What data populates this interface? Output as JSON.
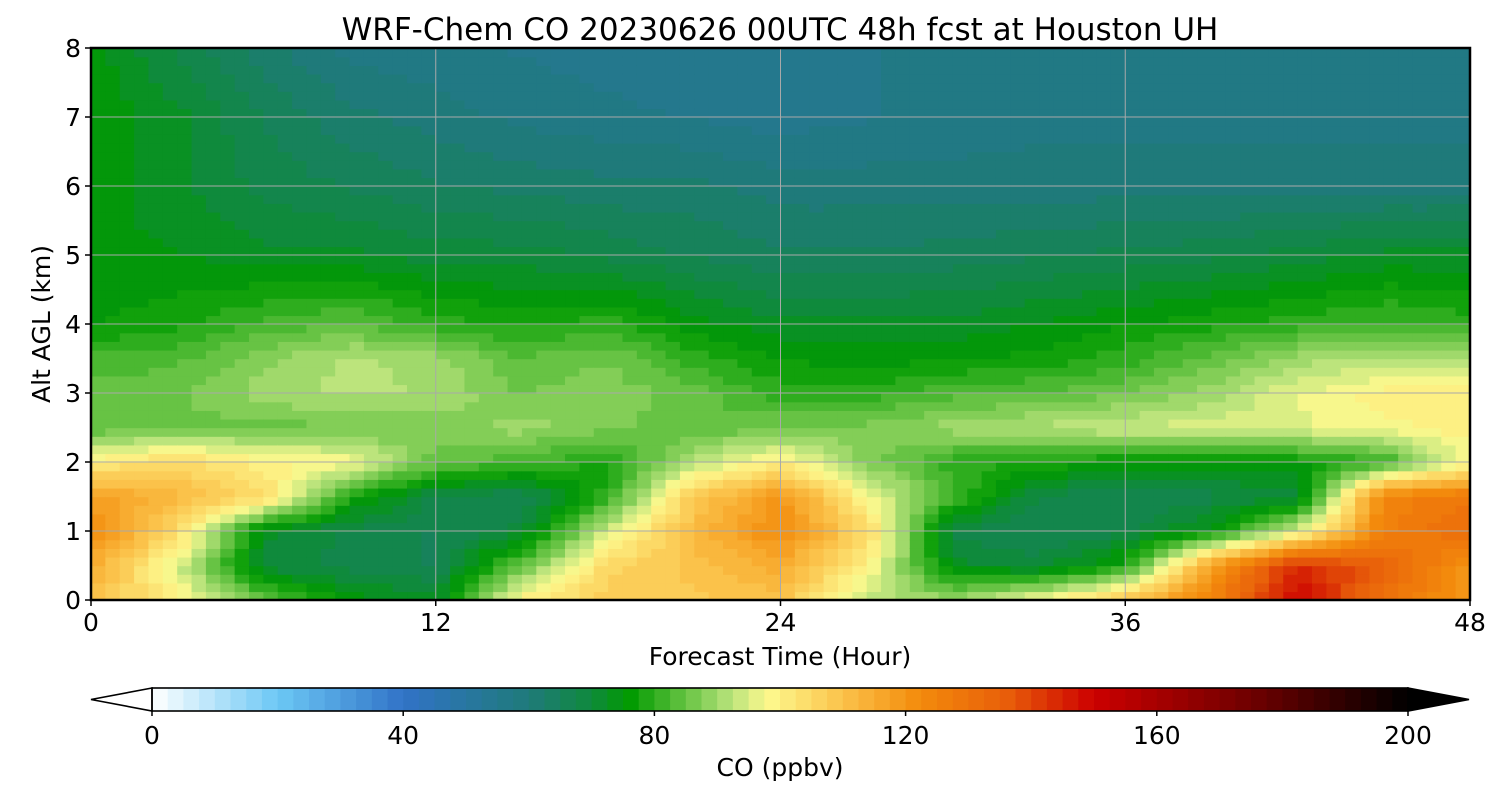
{
  "chart_data": {
    "type": "heatmap",
    "subtype": "filled-contour time-height cross-section",
    "title": "WRF-Chem CO  20230626 00UTC 48h fcst at Houston UH",
    "xlabel": "Forecast Time (Hour)",
    "ylabel": "Alt AGL (km)",
    "xlim": [
      0,
      48
    ],
    "ylim": [
      0,
      8
    ],
    "xticks": [
      0,
      12,
      24,
      36,
      48
    ],
    "yticks": [
      0,
      1,
      2,
      3,
      4,
      5,
      6,
      7,
      8
    ],
    "grid": true,
    "x_hours": [
      0,
      3,
      6,
      9,
      12,
      15,
      18,
      21,
      24,
      27,
      30,
      33,
      36,
      39,
      42,
      45,
      48
    ],
    "z_km": [
      0,
      0.5,
      1,
      1.5,
      2,
      2.5,
      3,
      3.5,
      4,
      5,
      6,
      7,
      8
    ],
    "co_ppbv": [
      [
        110,
        100,
        85,
        75,
        72,
        100,
        108,
        108,
        110,
        92,
        90,
        98,
        110,
        125,
        150,
        130,
        118
      ],
      [
        115,
        95,
        70,
        68,
        66,
        85,
        105,
        110,
        115,
        100,
        72,
        70,
        78,
        118,
        145,
        135,
        120
      ],
      [
        122,
        105,
        72,
        68,
        66,
        70,
        95,
        112,
        122,
        105,
        68,
        66,
        68,
        75,
        95,
        125,
        132
      ],
      [
        118,
        112,
        105,
        78,
        68,
        66,
        80,
        108,
        120,
        98,
        82,
        68,
        66,
        68,
        70,
        125,
        128
      ],
      [
        100,
        105,
        100,
        98,
        85,
        82,
        78,
        92,
        100,
        88,
        80,
        78,
        76,
        75,
        76,
        80,
        98
      ],
      [
        84,
        85,
        85,
        86,
        87,
        90,
        87,
        84,
        86,
        87,
        90,
        92,
        94,
        95,
        96,
        98,
        100
      ],
      [
        85,
        86,
        90,
        92,
        91,
        86,
        88,
        85,
        80,
        80,
        83,
        84,
        86,
        90,
        96,
        100,
        100
      ],
      [
        82,
        83,
        88,
        92,
        90,
        84,
        86,
        80,
        76,
        75,
        76,
        77,
        80,
        85,
        90,
        92,
        90
      ],
      [
        76,
        78,
        82,
        84,
        80,
        78,
        80,
        75,
        72,
        72,
        72,
        74,
        76,
        78,
        80,
        82,
        80
      ],
      [
        74,
        74,
        72,
        72,
        70,
        70,
        68,
        66,
        64,
        64,
        65,
        66,
        67,
        68,
        70,
        72,
        72
      ],
      [
        75,
        72,
        68,
        66,
        64,
        63,
        62,
        62,
        60,
        60,
        60,
        60,
        60,
        60,
        60,
        60,
        60
      ],
      [
        76,
        72,
        66,
        62,
        60,
        58,
        57,
        56,
        55,
        56,
        57,
        58,
        58,
        58,
        58,
        58,
        58
      ],
      [
        75,
        68,
        62,
        58,
        57,
        56,
        55,
        54,
        54,
        56,
        57,
        58,
        58,
        58,
        58,
        58,
        58
      ]
    ],
    "colorbar": {
      "label": "CO  (ppbv)",
      "min": 0,
      "max": 200,
      "ticks": [
        0,
        40,
        80,
        120,
        160,
        200
      ],
      "extend": "both",
      "colors": [
        {
          "v": 0,
          "c": "#ffffff"
        },
        {
          "v": 20,
          "c": "#6cc8f5"
        },
        {
          "v": 40,
          "c": "#3173c7"
        },
        {
          "v": 60,
          "c": "#1f7a7a"
        },
        {
          "v": 70,
          "c": "#0f8a3c"
        },
        {
          "v": 76,
          "c": "#009a00"
        },
        {
          "v": 84,
          "c": "#5cbf3c"
        },
        {
          "v": 92,
          "c": "#b6e27a"
        },
        {
          "v": 98,
          "c": "#fdf98e"
        },
        {
          "v": 110,
          "c": "#fbc24a"
        },
        {
          "v": 122,
          "c": "#f38c0c"
        },
        {
          "v": 136,
          "c": "#e85f0a"
        },
        {
          "v": 150,
          "c": "#cc0000"
        },
        {
          "v": 176,
          "c": "#6b0000"
        },
        {
          "v": 200,
          "c": "#000000"
        }
      ],
      "under_color": "#ffffff",
      "over_color": "#000000"
    }
  }
}
